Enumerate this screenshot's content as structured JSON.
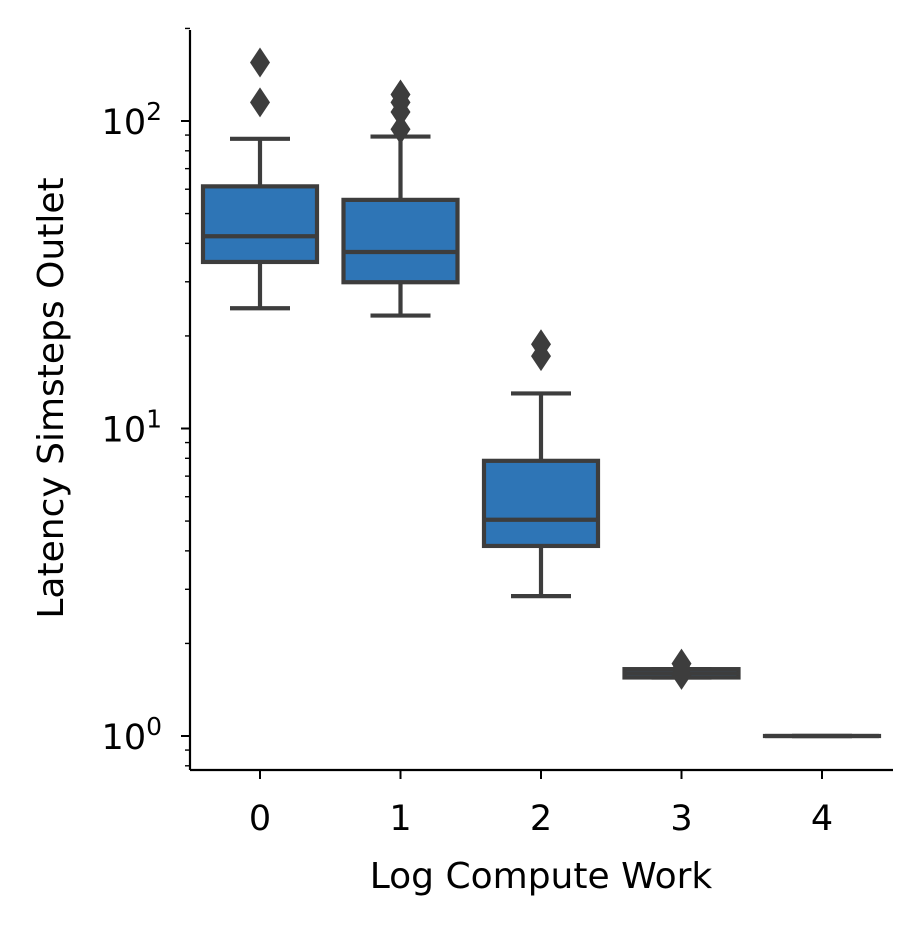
{
  "chart_data": {
    "type": "box",
    "xlabel": "Log Compute Work",
    "ylabel": "Latency Simsteps Outlet",
    "y_scale": "log",
    "ylim": [
      0.8,
      200
    ],
    "y_ticks": [
      {
        "value": 1,
        "base": "10",
        "exp": "0"
      },
      {
        "value": 10,
        "base": "10",
        "exp": "1"
      },
      {
        "value": 100,
        "base": "10",
        "exp": "2"
      }
    ],
    "categories": [
      "0",
      "1",
      "2",
      "3",
      "4"
    ],
    "box_color": "#2e75b6",
    "line_color": "#3d3d3d",
    "boxes": [
      {
        "category": "0",
        "whislo": 24.6,
        "q1": 34.8,
        "med": 42.2,
        "q3": 61.3,
        "whishi": 87.5,
        "fliers": [
          115,
          155
        ]
      },
      {
        "category": "1",
        "whislo": 23.3,
        "q1": 29.9,
        "med": 37.5,
        "q3": 55.4,
        "whishi": 89.0,
        "fliers": [
          94,
          107,
          115,
          122
        ]
      },
      {
        "category": "2",
        "whislo": 2.85,
        "q1": 4.15,
        "med": 5.05,
        "q3": 7.85,
        "whishi": 13.0,
        "fliers": [
          17.2,
          18.8
        ]
      },
      {
        "category": "3",
        "whislo": 1.55,
        "q1": 1.55,
        "med": 1.6,
        "q3": 1.65,
        "whishi": 1.65,
        "fliers": [
          1.58,
          1.65,
          1.72
        ]
      },
      {
        "category": "4",
        "whislo": 1.0,
        "q1": 1.0,
        "med": 1.0,
        "q3": 1.0,
        "whishi": 1.0,
        "fliers": []
      }
    ]
  }
}
